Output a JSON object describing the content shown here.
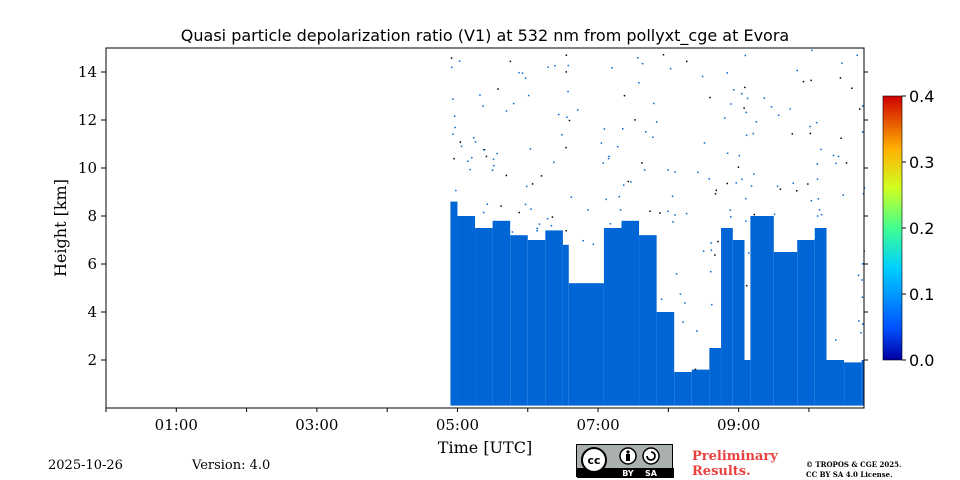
{
  "chart_data": {
    "type": "heatmap",
    "title": "Quasi particle depolarization ratio (V1) at 532 nm from pollyxt_cge at Evora",
    "xlabel": "Time [UTC]",
    "ylabel": "Height [km]",
    "xlim": [
      "00:00",
      "10:47"
    ],
    "ylim": [
      0,
      15
    ],
    "x_ticks": [
      "01:00",
      "03:00",
      "05:00",
      "07:00",
      "09:00"
    ],
    "y_ticks": [
      "2",
      "4",
      "6",
      "8",
      "10",
      "12",
      "14"
    ],
    "colorbar": {
      "min": 0.0,
      "max": 0.4,
      "ticks": [
        "0.0",
        "0.1",
        "0.2",
        "0.3",
        "0.4"
      ],
      "colormap": "jet"
    },
    "dominant_value": 0.05,
    "grid": false,
    "fill_color": "#0066d6",
    "profiles": [
      {
        "t": "04:54",
        "base_km": 0.1,
        "top_km": 8.6
      },
      {
        "t": "05:00",
        "base_km": 0.1,
        "top_km": 8.0
      },
      {
        "t": "05:15",
        "base_km": 0.1,
        "top_km": 7.5
      },
      {
        "t": "05:30",
        "base_km": 0.1,
        "top_km": 7.8
      },
      {
        "t": "05:45",
        "base_km": 0.1,
        "top_km": 7.2
      },
      {
        "t": "06:00",
        "base_km": 0.1,
        "top_km": 7.0
      },
      {
        "t": "06:15",
        "base_km": 0.1,
        "top_km": 7.4
      },
      {
        "t": "06:30",
        "base_km": 0.1,
        "top_km": 6.8
      },
      {
        "t": "06:35",
        "base_km": 0.1,
        "top_km": 5.2
      },
      {
        "t": "07:05",
        "base_km": 0.1,
        "top_km": 7.5
      },
      {
        "t": "07:20",
        "base_km": 0.1,
        "top_km": 7.8
      },
      {
        "t": "07:35",
        "base_km": 0.1,
        "top_km": 7.2
      },
      {
        "t": "07:50",
        "base_km": 0.1,
        "top_km": 4.0
      },
      {
        "t": "08:05",
        "base_km": 0.1,
        "top_km": 1.5
      },
      {
        "t": "08:20",
        "base_km": 0.1,
        "top_km": 1.6
      },
      {
        "t": "08:35",
        "base_km": 0.1,
        "top_km": 2.5
      },
      {
        "t": "08:45",
        "base_km": 0.1,
        "top_km": 7.5
      },
      {
        "t": "08:55",
        "base_km": 0.1,
        "top_km": 7.0
      },
      {
        "t": "09:05",
        "base_km": 0.1,
        "top_km": 2.0
      },
      {
        "t": "09:10",
        "base_km": 0.1,
        "top_km": 8.0
      },
      {
        "t": "09:30",
        "base_km": 0.1,
        "top_km": 6.5
      },
      {
        "t": "09:50",
        "base_km": 0.1,
        "top_km": 7.0
      },
      {
        "t": "10:05",
        "base_km": 0.1,
        "top_km": 7.5
      },
      {
        "t": "10:15",
        "base_km": 0.1,
        "top_km": 2.0
      },
      {
        "t": "10:30",
        "base_km": 0.1,
        "top_km": 1.9
      },
      {
        "t": "10:45",
        "base_km": 0.1,
        "top_km": 2.0
      }
    ]
  },
  "footer": {
    "date": "2025-10-26",
    "version": "Version: 4.0",
    "preliminary_line1": "Preliminary",
    "preliminary_line2": "Results.",
    "copyright_line1": "© TROPOS & CGE 2025.",
    "copyright_line2": "CC BY SA 4.0 License.",
    "badge_by": "BY",
    "badge_sa": "SA"
  }
}
